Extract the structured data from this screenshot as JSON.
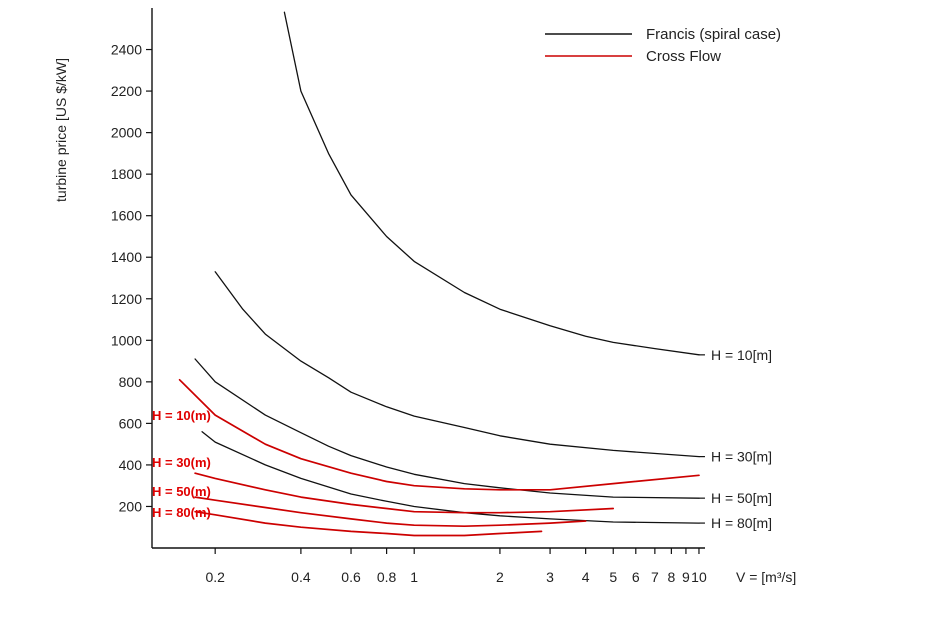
{
  "chart_data": {
    "type": "line",
    "ylabel": "turbine price [US $/kW]",
    "xlabel": "V = [m³/s]",
    "x_scale": "log",
    "xlim": [
      0.12,
      10.5
    ],
    "ylim": [
      0,
      2600
    ],
    "y_ticks": [
      200,
      400,
      600,
      800,
      1000,
      1200,
      1400,
      1600,
      1800,
      2000,
      2200,
      2400
    ],
    "y_tick_labels": [
      "200",
      "400",
      "600",
      "800",
      "1000",
      "1200",
      "1400",
      "1600",
      "1800",
      "2000",
      "2200",
      "2400"
    ],
    "x_ticks": [
      0.2,
      0.4,
      0.6,
      0.8,
      1,
      2,
      3,
      4,
      5,
      6,
      7,
      8,
      9,
      10
    ],
    "x_tick_labels": [
      "0.2",
      "0.4",
      "0.6",
      "0.8",
      "1",
      "2",
      "3",
      "4",
      "5",
      "6",
      "7",
      "8",
      "9",
      "10"
    ],
    "legend": {
      "placement": "top-right",
      "entries": [
        {
          "label": "Francis (spiral case)",
          "color": "#111111"
        },
        {
          "label": "Cross Flow",
          "color": "#cc0000"
        }
      ]
    },
    "series": [
      {
        "name": "H = 10[m]",
        "group": "francis",
        "color": "#111111",
        "label_side": "right",
        "x": [
          0.35,
          0.4,
          0.5,
          0.6,
          0.8,
          1,
          1.5,
          2,
          3,
          4,
          5,
          7,
          10
        ],
        "y": [
          2580,
          2200,
          1900,
          1700,
          1500,
          1380,
          1230,
          1150,
          1070,
          1020,
          990,
          960,
          930
        ]
      },
      {
        "name": "H = 30[m]",
        "group": "francis",
        "color": "#111111",
        "label_side": "right",
        "x": [
          0.2,
          0.25,
          0.3,
          0.4,
          0.5,
          0.6,
          0.8,
          1,
          1.5,
          2,
          3,
          5,
          10
        ],
        "y": [
          1330,
          1150,
          1030,
          900,
          820,
          750,
          680,
          635,
          580,
          540,
          500,
          470,
          440
        ]
      },
      {
        "name": "H = 50[m]",
        "group": "francis",
        "color": "#111111",
        "label_side": "right",
        "x": [
          0.17,
          0.2,
          0.3,
          0.4,
          0.5,
          0.6,
          0.8,
          1,
          1.5,
          2,
          3,
          5,
          10
        ],
        "y": [
          910,
          800,
          640,
          555,
          490,
          445,
          390,
          355,
          310,
          290,
          265,
          245,
          240
        ]
      },
      {
        "name": "H = 80[m]",
        "group": "francis",
        "color": "#111111",
        "label_side": "right",
        "x": [
          0.18,
          0.2,
          0.3,
          0.4,
          0.6,
          0.8,
          1,
          1.5,
          2,
          3,
          5,
          10
        ],
        "y": [
          560,
          510,
          400,
          335,
          260,
          225,
          200,
          170,
          155,
          140,
          125,
          120
        ]
      },
      {
        "name": "H = 10(m)",
        "group": "crossflow",
        "color": "#cc0000",
        "label_side": "left",
        "x": [
          0.15,
          0.2,
          0.3,
          0.4,
          0.6,
          0.8,
          1,
          1.5,
          2,
          3,
          5,
          10
        ],
        "y": [
          810,
          640,
          500,
          430,
          360,
          320,
          300,
          285,
          280,
          280,
          310,
          350
        ]
      },
      {
        "name": "H = 30(m)",
        "group": "crossflow",
        "color": "#cc0000",
        "label_side": "left",
        "x": [
          0.17,
          0.2,
          0.3,
          0.4,
          0.6,
          0.8,
          1,
          1.5,
          2,
          3,
          5
        ],
        "y": [
          360,
          335,
          280,
          245,
          210,
          190,
          175,
          170,
          170,
          175,
          190
        ]
      },
      {
        "name": "H = 50(m)",
        "group": "crossflow",
        "color": "#cc0000",
        "label_side": "left",
        "x": [
          0.17,
          0.2,
          0.3,
          0.4,
          0.6,
          0.8,
          1,
          1.5,
          2,
          3,
          4
        ],
        "y": [
          245,
          230,
          195,
          170,
          140,
          120,
          110,
          105,
          110,
          120,
          130
        ]
      },
      {
        "name": "H = 80(m)",
        "group": "crossflow",
        "color": "#cc0000",
        "label_side": "left",
        "x": [
          0.17,
          0.2,
          0.3,
          0.4,
          0.6,
          0.8,
          1,
          1.5,
          2,
          2.8
        ],
        "y": [
          175,
          160,
          120,
          100,
          80,
          70,
          60,
          60,
          70,
          80
        ]
      }
    ]
  }
}
